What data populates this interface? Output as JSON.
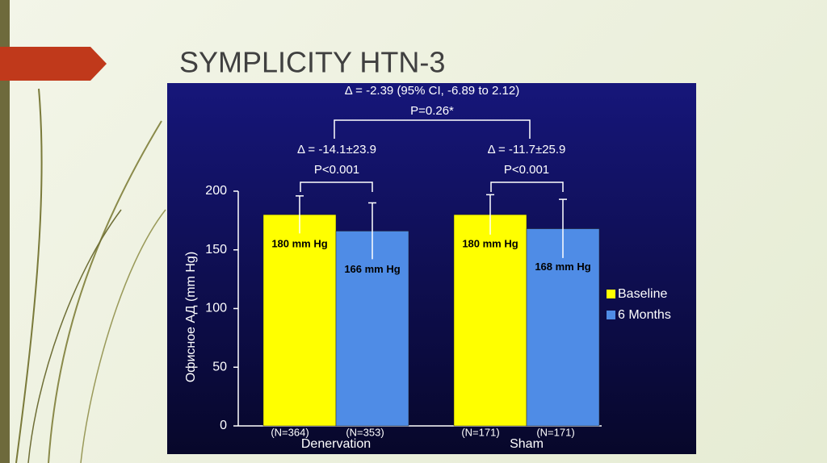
{
  "slide_title": "SYMPLICITY HTN-3",
  "chart_data": {
    "type": "bar",
    "y_label": "Офисное АД (mm Hg)",
    "categories": [
      "Denervation",
      "Sham"
    ],
    "series": [
      {
        "name": "Baseline",
        "color": "#ffff00",
        "values": [
          180,
          180
        ],
        "value_labels": [
          "180 mm Hg",
          "180 mm Hg"
        ],
        "errors": [
          16,
          17
        ],
        "n_labels": [
          "(N=364)",
          "(N=171)"
        ]
      },
      {
        "name": "6 Months",
        "color": "#4f8ce6",
        "values": [
          166,
          168
        ],
        "value_labels": [
          "166 mm Hg",
          "168 mm Hg"
        ],
        "errors": [
          24,
          25
        ],
        "n_labels": [
          "(N=353)",
          "(N=171)"
        ]
      }
    ],
    "ylim": [
      0,
      200
    ],
    "yticks": [
      0,
      50,
      100,
      150,
      200
    ],
    "annotations": [
      "Δ = -2.39 (95% CI, -6.89 to 2.12)",
      "P=0.26*",
      "Δ = -14.1±23.9",
      "P<0.001",
      "Δ = -11.7±25.9",
      "P<0.001"
    ]
  }
}
